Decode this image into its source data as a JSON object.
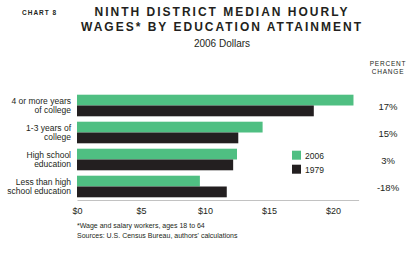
{
  "chart_data": {
    "type": "bar",
    "orientation": "horizontal",
    "label": "CHART 8",
    "title": "NINTH DISTRICT MEDIAN HOURLY WAGES* BY EDUCATION ATTAINMENT",
    "subtitle": "2006 Dollars",
    "categories": [
      "4 or more years of college",
      "1-3 years of college",
      "High school education",
      "Less than high school education"
    ],
    "series": [
      {
        "name": "2006",
        "color": "#4fbf82",
        "values": [
          21.6,
          14.5,
          12.5,
          9.6
        ]
      },
      {
        "name": "1979",
        "color": "#231f20",
        "values": [
          18.5,
          12.6,
          12.2,
          11.7
        ]
      }
    ],
    "xlim": [
      0,
      22
    ],
    "xticks": [
      {
        "value": 0,
        "label": "$0"
      },
      {
        "value": 5,
        "label": "$5"
      },
      {
        "value": 10,
        "label": "$10"
      },
      {
        "value": 15,
        "label": "$15"
      },
      {
        "value": 20,
        "label": "$20"
      }
    ],
    "grid": false,
    "legend": "right",
    "percent_change": {
      "title": "PERCENT CHANGE",
      "values": [
        17,
        15,
        3,
        -18
      ],
      "value_labels": [
        "17%",
        "15%",
        "3%",
        "-18%"
      ]
    },
    "footnotes": [
      "*Wage and salary workers, ages 18 to 64",
      "Sources: U.S. Census Bureau, authors' calculations"
    ]
  }
}
